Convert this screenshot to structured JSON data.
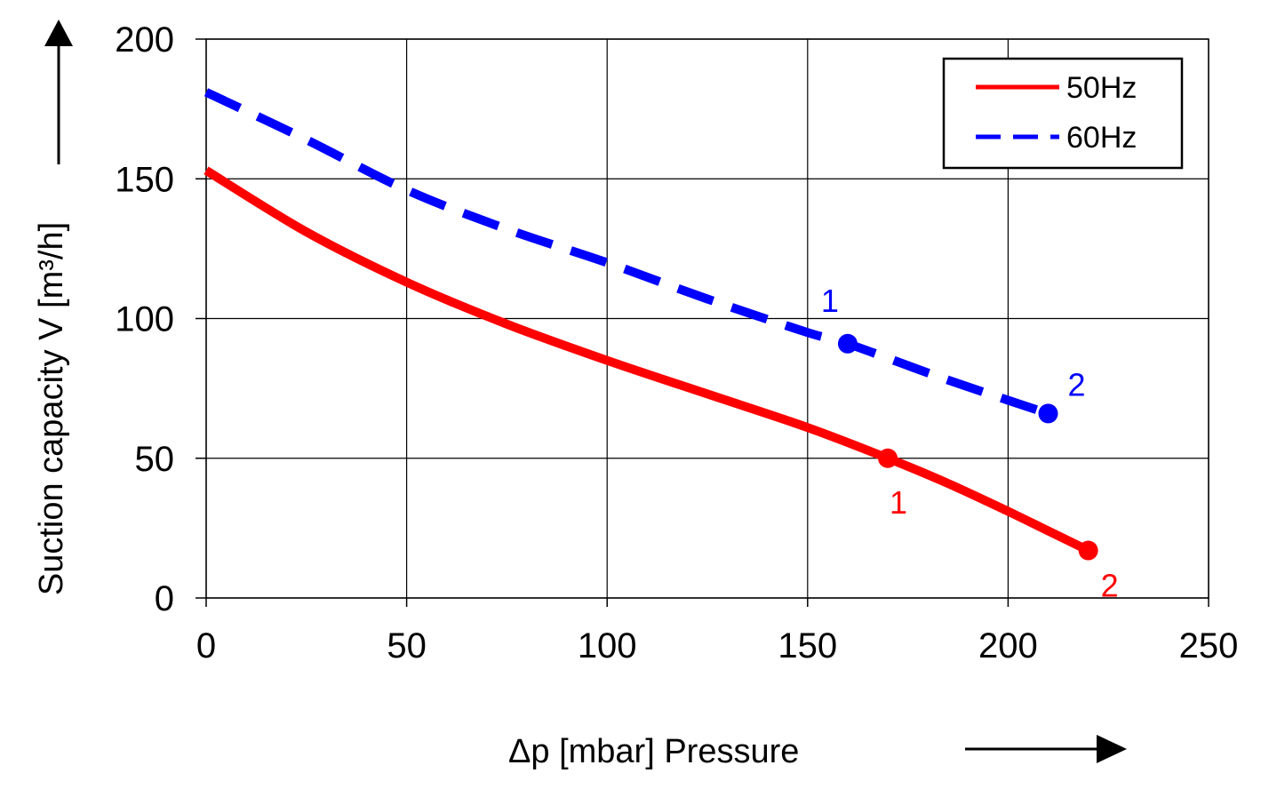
{
  "chart_data": {
    "type": "line",
    "title": "",
    "xlabel": "Δp [mbar]  Pressure",
    "ylabel": "Suction capacity V [m³/h]",
    "xlim": [
      0,
      250
    ],
    "ylim": [
      0,
      200
    ],
    "x_ticks": [
      0,
      50,
      100,
      150,
      200,
      250
    ],
    "y_ticks": [
      0,
      50,
      100,
      150,
      200
    ],
    "grid": true,
    "legend_position": "top-right",
    "series": [
      {
        "name": "50Hz",
        "color": "#ff0000",
        "style": "solid",
        "x": [
          0,
          25,
          50,
          75,
          100,
          125,
          150,
          170,
          185,
          200,
          210,
          220
        ],
        "y": [
          153,
          131,
          113,
          98,
          85,
          73,
          61,
          50,
          41,
          31,
          24,
          17
        ],
        "markers": [
          {
            "x": 170,
            "y": 50,
            "label": "1"
          },
          {
            "x": 220,
            "y": 17,
            "label": "2"
          }
        ]
      },
      {
        "name": "60Hz",
        "color": "#0000ff",
        "style": "dashed",
        "x": [
          0,
          25,
          50,
          75,
          100,
          125,
          150,
          160,
          185,
          210
        ],
        "y": [
          181,
          164,
          146,
          132,
          120,
          107,
          95,
          91,
          78,
          66
        ],
        "markers": [
          {
            "x": 160,
            "y": 91,
            "label": "1"
          },
          {
            "x": 210,
            "y": 66,
            "label": "2"
          }
        ]
      }
    ]
  }
}
